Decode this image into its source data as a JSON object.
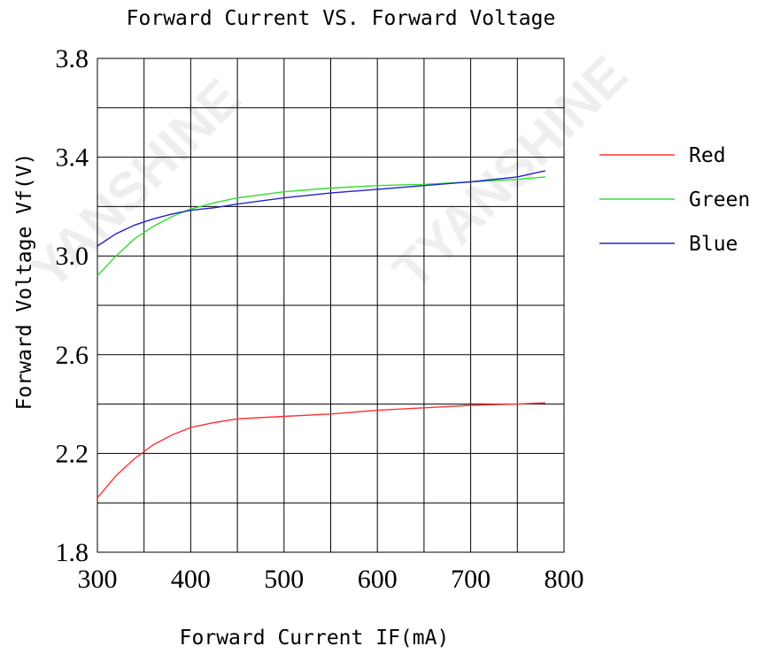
{
  "chart_data": {
    "type": "line",
    "title": "Forward Current VS. Forward Voltage",
    "xlabel": "Forward Current IF(mA)",
    "ylabel": "Forward Voltage Vf(V)",
    "xlim": [
      300,
      800
    ],
    "ylim": [
      1.8,
      3.8
    ],
    "x_ticks": [
      300,
      400,
      500,
      600,
      700,
      800
    ],
    "y_ticks": [
      1.8,
      2.2,
      2.6,
      3.0,
      3.4,
      3.8
    ],
    "grid": true,
    "grid_x_step": 50,
    "grid_y_step": 0.2,
    "legend_position": "right",
    "series": [
      {
        "name": "Red",
        "color": "#ff3333",
        "points": [
          [
            300,
            2.02
          ],
          [
            320,
            2.11
          ],
          [
            340,
            2.18
          ],
          [
            360,
            2.235
          ],
          [
            380,
            2.275
          ],
          [
            400,
            2.305
          ],
          [
            425,
            2.325
          ],
          [
            450,
            2.34
          ],
          [
            500,
            2.35
          ],
          [
            550,
            2.36
          ],
          [
            600,
            2.375
          ],
          [
            650,
            2.385
          ],
          [
            700,
            2.395
          ],
          [
            750,
            2.4
          ],
          [
            780,
            2.405
          ]
        ]
      },
      {
        "name": "Green",
        "color": "#33dd33",
        "points": [
          [
            300,
            2.92
          ],
          [
            320,
            3.0
          ],
          [
            340,
            3.07
          ],
          [
            360,
            3.12
          ],
          [
            380,
            3.16
          ],
          [
            400,
            3.19
          ],
          [
            425,
            3.215
          ],
          [
            450,
            3.235
          ],
          [
            500,
            3.26
          ],
          [
            550,
            3.275
          ],
          [
            600,
            3.285
          ],
          [
            650,
            3.29
          ],
          [
            700,
            3.3
          ],
          [
            750,
            3.31
          ],
          [
            780,
            3.32
          ]
        ]
      },
      {
        "name": "Blue",
        "color": "#2222cc",
        "points": [
          [
            300,
            3.04
          ],
          [
            320,
            3.09
          ],
          [
            340,
            3.125
          ],
          [
            360,
            3.15
          ],
          [
            380,
            3.17
          ],
          [
            400,
            3.185
          ],
          [
            425,
            3.195
          ],
          [
            450,
            3.21
          ],
          [
            500,
            3.235
          ],
          [
            550,
            3.255
          ],
          [
            600,
            3.27
          ],
          [
            650,
            3.285
          ],
          [
            700,
            3.3
          ],
          [
            750,
            3.32
          ],
          [
            780,
            3.345
          ]
        ]
      }
    ]
  }
}
